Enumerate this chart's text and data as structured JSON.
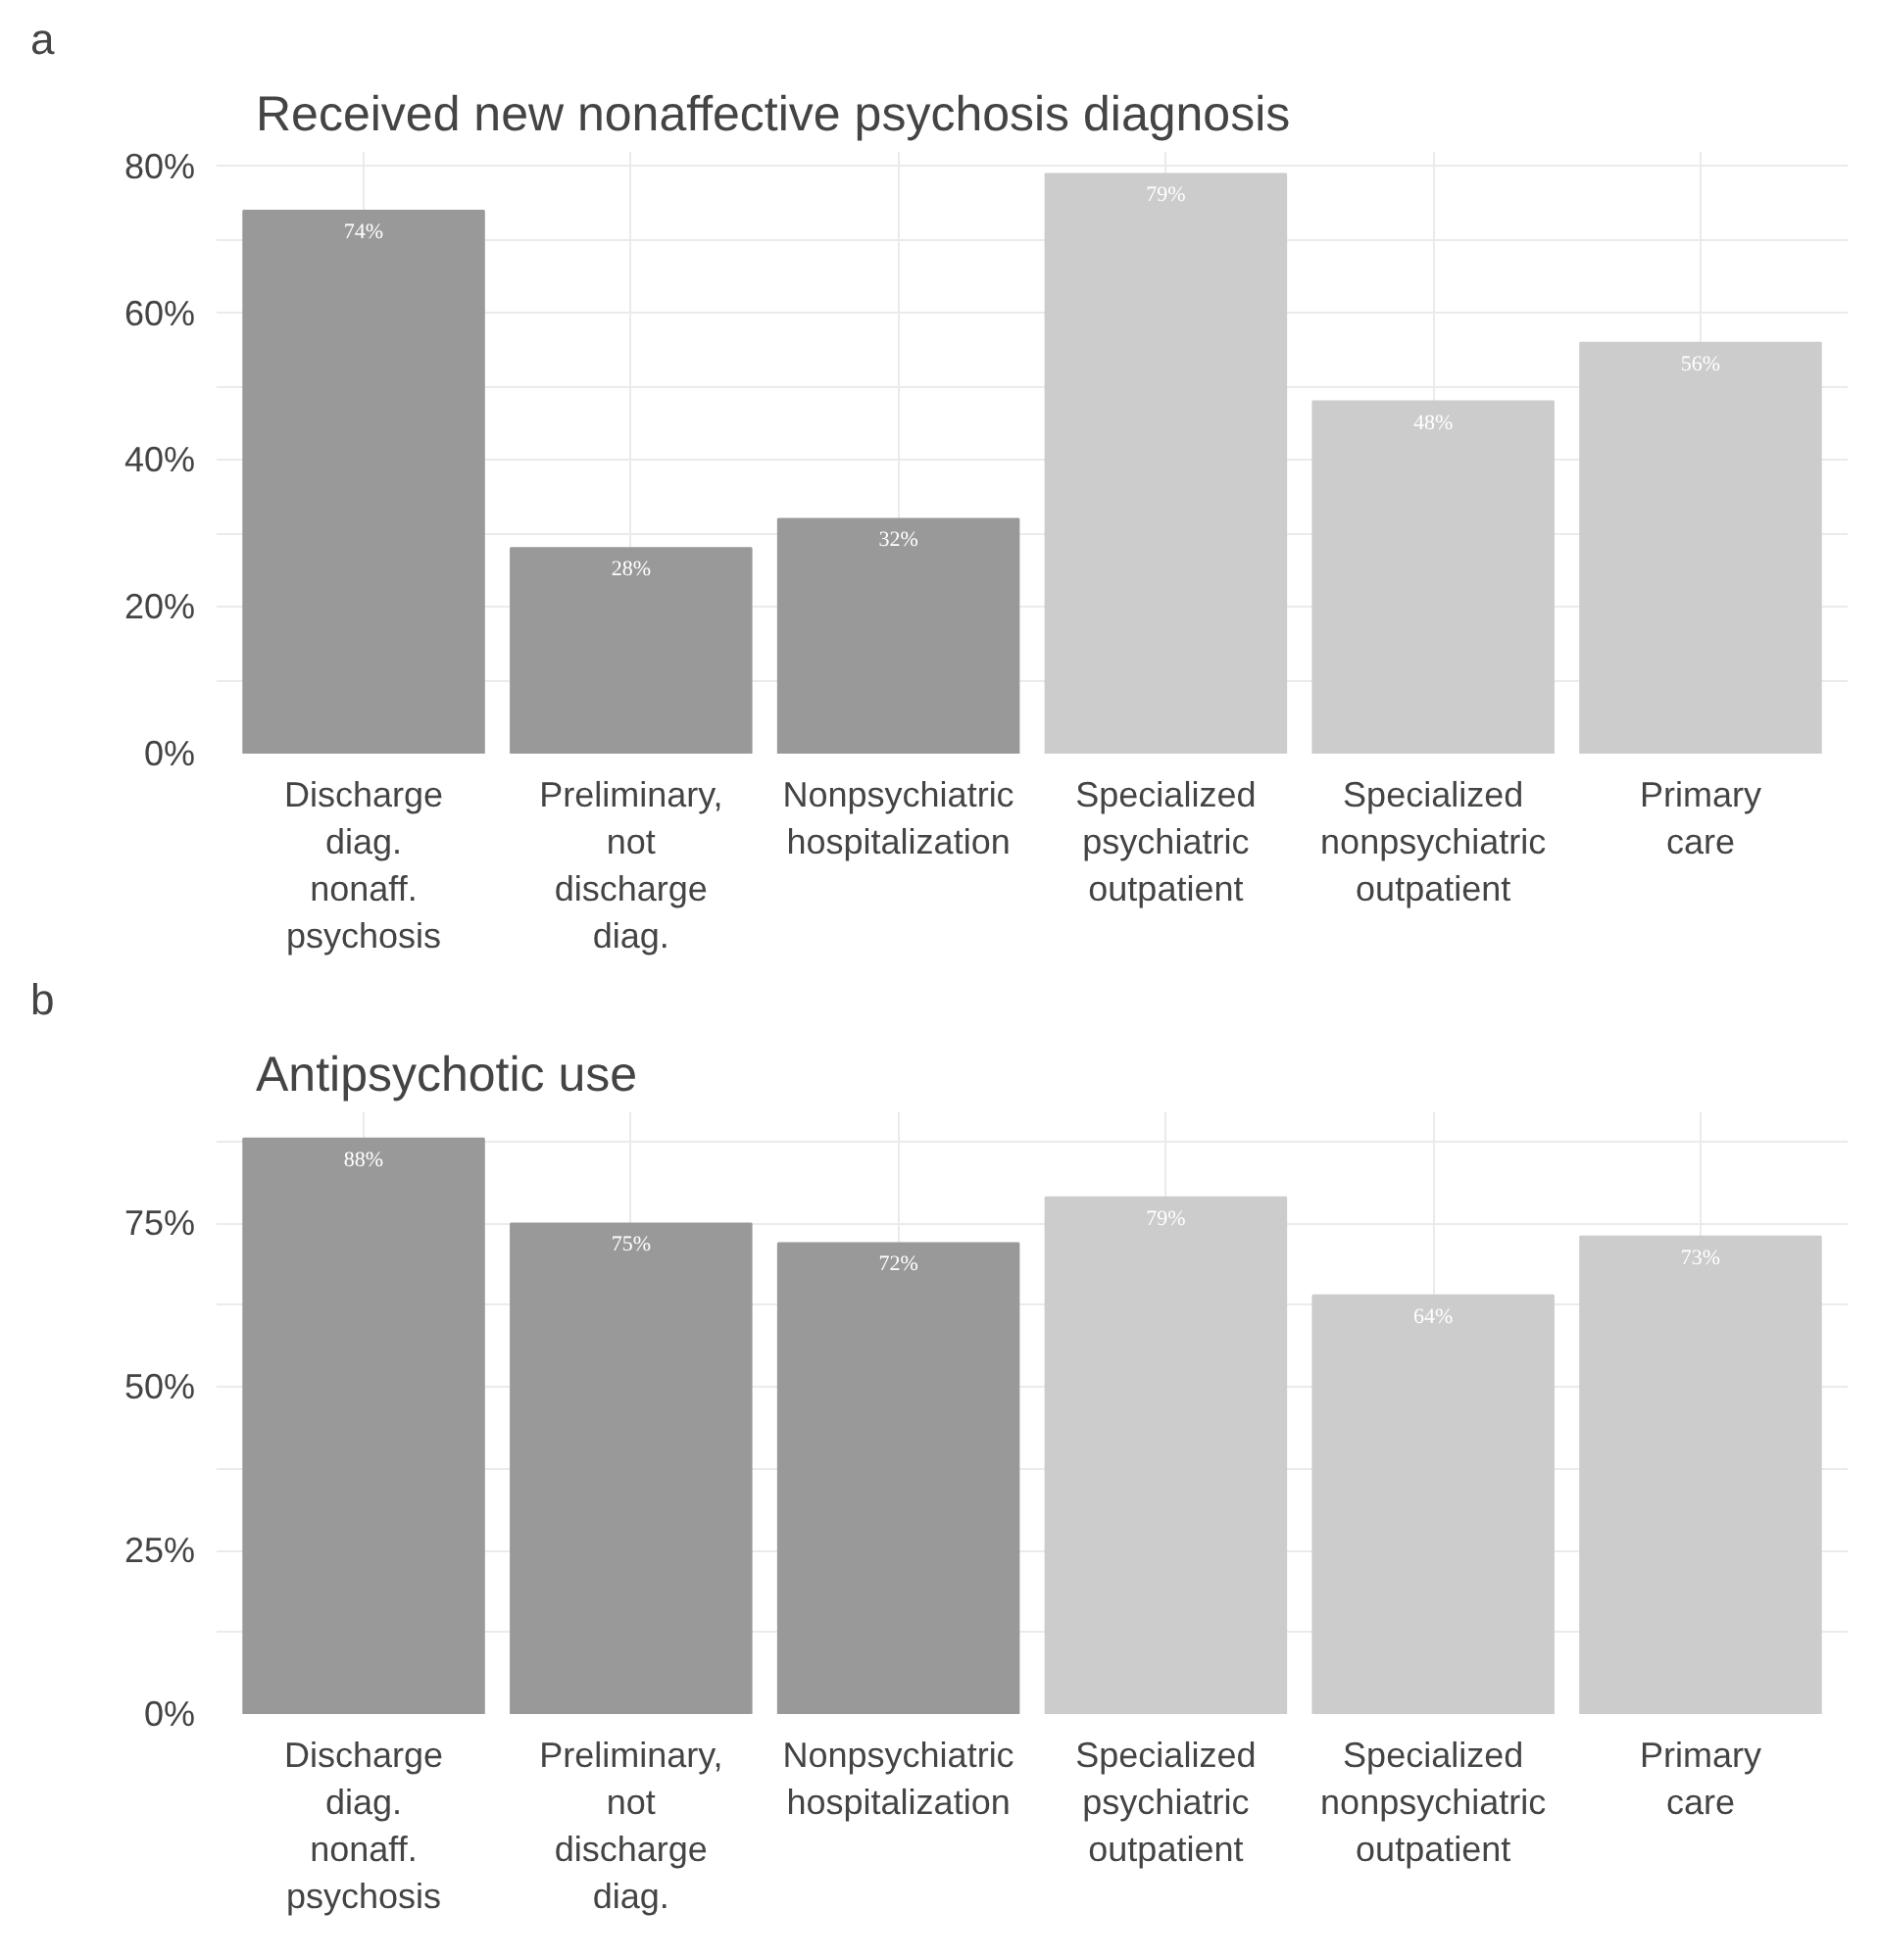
{
  "chart_data": [
    {
      "type": "bar",
      "title": "Received new nonaffective psychosis diagnosis",
      "annotations": [
        "a"
      ],
      "categories": [
        "Discharge\ndiag.\nnonaff.\npsychosis",
        "Preliminary,\nnot\ndischarge\ndiag.",
        "Nonpsychiatric\nhospitalization",
        "Specialized\npsychiatric\noutpatient",
        "Specialized\nnonpsychiatric\noutpatient",
        "Primary\ncare"
      ],
      "values": [
        74,
        28,
        32,
        79,
        48,
        56
      ],
      "value_labels": [
        "74%",
        "28%",
        "32%",
        "79%",
        "48%",
        "56%"
      ],
      "colors": [
        "#999999",
        "#999999",
        "#999999",
        "#cccccc",
        "#cccccc",
        "#cccccc"
      ],
      "ylim": [
        0,
        82
      ],
      "yticks": [
        {
          "value": 0,
          "label": "0%"
        },
        {
          "value": 10,
          "label": null
        },
        {
          "value": 20,
          "label": "20%"
        },
        {
          "value": 30,
          "label": null
        },
        {
          "value": 40,
          "label": "40%"
        },
        {
          "value": 50,
          "label": null
        },
        {
          "value": 60,
          "label": "60%"
        },
        {
          "value": 70,
          "label": null
        },
        {
          "value": 80,
          "label": "80%"
        }
      ],
      "grid": true
    },
    {
      "type": "bar",
      "title": "Antipsychotic use",
      "annotations": [
        "b"
      ],
      "categories": [
        "Discharge\ndiag.\nnonaff.\npsychosis",
        "Preliminary,\nnot\ndischarge\ndiag.",
        "Nonpsychiatric\nhospitalization",
        "Specialized\npsychiatric\noutpatient",
        "Specialized\nnonpsychiatric\noutpatient",
        "Primary\ncare"
      ],
      "values": [
        88,
        75,
        72,
        79,
        64,
        73
      ],
      "value_labels": [
        "88%",
        "75%",
        "72%",
        "79%",
        "64%",
        "73%"
      ],
      "colors": [
        "#999999",
        "#999999",
        "#999999",
        "#cccccc",
        "#cccccc",
        "#cccccc"
      ],
      "ylim": [
        0,
        92
      ],
      "yticks": [
        {
          "value": 0,
          "label": "0%"
        },
        {
          "value": 12.5,
          "label": null
        },
        {
          "value": 25,
          "label": "25%"
        },
        {
          "value": 37.5,
          "label": null
        },
        {
          "value": 50,
          "label": "50%"
        },
        {
          "value": 62.5,
          "label": null
        },
        {
          "value": 75,
          "label": "75%"
        },
        {
          "value": 87.5,
          "label": null
        }
      ],
      "grid": true
    }
  ]
}
